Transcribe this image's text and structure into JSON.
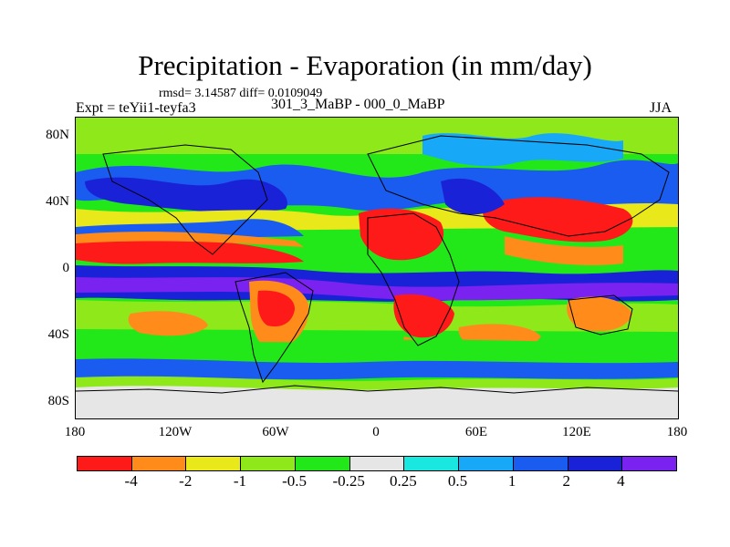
{
  "title": "Precipitation - Evaporation (in mm/day)",
  "stats": "rmsd= 3.14587  diff= 0.0109049",
  "experiment": "Expt = teYii1-teyfa3",
  "cases": "301_3_MaBP - 000_0_MaBP",
  "season": "JJA",
  "lat_ticks": [
    "80N",
    "40N",
    "0",
    "40S",
    "80S"
  ],
  "lon_ticks": [
    "180",
    "120W",
    "60W",
    "0",
    "60E",
    "120E",
    "180"
  ],
  "colorbar": {
    "colors": [
      "#ff1a1a",
      "#ff8c1a",
      "#e8e81a",
      "#8ee81a",
      "#22e81a",
      "#e6e6e6",
      "#1ae8e0",
      "#18a8f8",
      "#1a5cf0",
      "#1a22d8",
      "#7a22f0"
    ],
    "labels": [
      "-4",
      "-2",
      "-1",
      "-0.5",
      "-0.25",
      "0.25",
      "0.5",
      "1",
      "2",
      "4"
    ]
  }
}
